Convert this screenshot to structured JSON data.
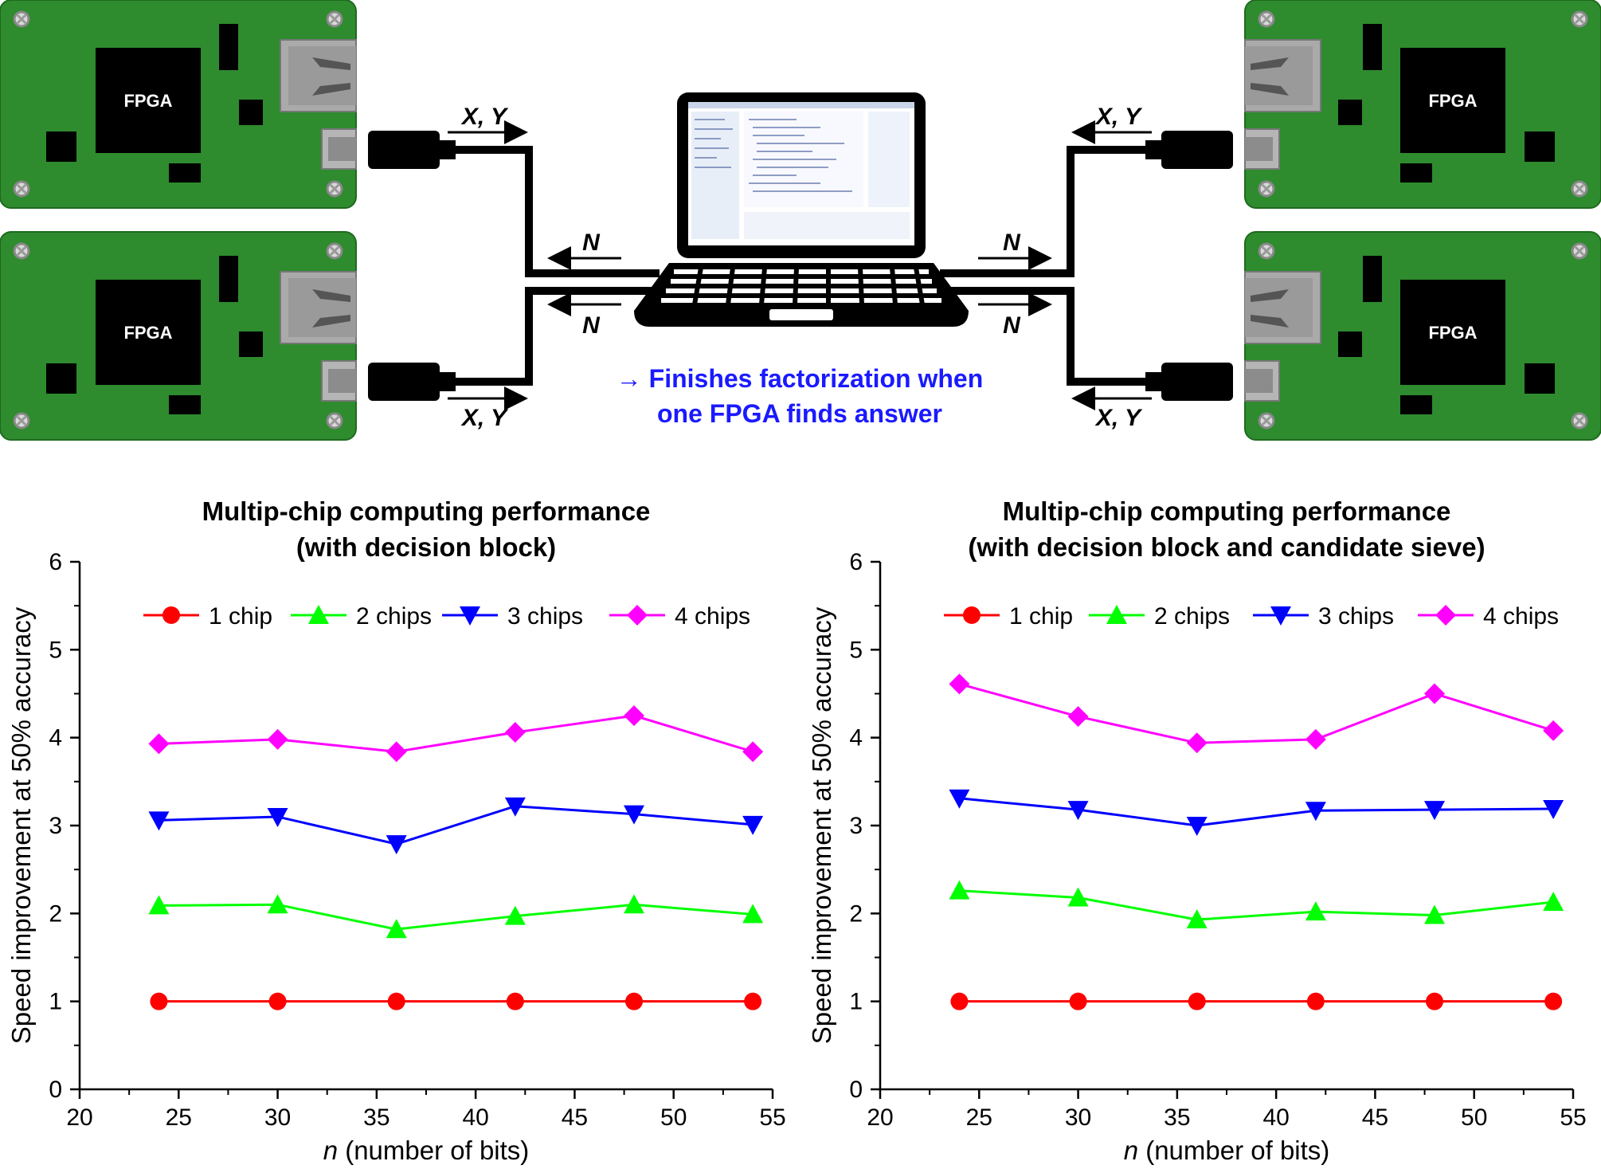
{
  "diagram": {
    "fpga_label": "FPGA",
    "xy_label": "X, Y",
    "n_label": "N",
    "note_line1": "→ Finishes factorization when",
    "note_line2": "one FPGA finds answer",
    "colors": {
      "board": "#2e8b2e",
      "board_edge": "#1e6b1e",
      "note": "#1a1aff"
    }
  },
  "chart_data": [
    {
      "type": "line",
      "title": [
        "Multip-chip computing performance",
        "(with decision block)"
      ],
      "xlabel_var": "n",
      "xlabel_rest": " (number of bits)",
      "ylabel": "Speed improvement at 50% accuracy",
      "xlim": [
        20,
        55
      ],
      "ylim": [
        0,
        6
      ],
      "xticks": [
        20,
        25,
        30,
        35,
        40,
        45,
        50,
        55
      ],
      "yticks": [
        0,
        1,
        2,
        3,
        4,
        5,
        6
      ],
      "legend_position": "top",
      "x": [
        24,
        30,
        36,
        42,
        48,
        54
      ],
      "series": [
        {
          "name": "1 chip",
          "color": "#ff0000",
          "marker": "circle",
          "values": [
            1.0,
            1.0,
            1.0,
            1.0,
            1.0,
            1.0
          ]
        },
        {
          "name": "2 chips",
          "color": "#00ff00",
          "marker": "triangle-up",
          "values": [
            2.09,
            2.1,
            1.82,
            1.97,
            2.1,
            1.99
          ]
        },
        {
          "name": "3 chips",
          "color": "#0000ff",
          "marker": "triangle-down",
          "values": [
            3.06,
            3.1,
            2.79,
            3.22,
            3.13,
            3.01
          ]
        },
        {
          "name": "4 chips",
          "color": "#ff00ff",
          "marker": "diamond",
          "values": [
            3.93,
            3.98,
            3.84,
            4.06,
            4.25,
            3.84
          ]
        }
      ]
    },
    {
      "type": "line",
      "title": [
        "Multip-chip computing performance",
        "(with decision block and candidate sieve)"
      ],
      "xlabel_var": "n",
      "xlabel_rest": " (number of bits)",
      "ylabel": "Speed improvement at 50% accuracy",
      "xlim": [
        20,
        55
      ],
      "ylim": [
        0,
        6
      ],
      "xticks": [
        20,
        25,
        30,
        35,
        40,
        45,
        50,
        55
      ],
      "yticks": [
        0,
        1,
        2,
        3,
        4,
        5,
        6
      ],
      "legend_position": "top",
      "x": [
        24,
        30,
        36,
        42,
        48,
        54
      ],
      "series": [
        {
          "name": "1 chip",
          "color": "#ff0000",
          "marker": "circle",
          "values": [
            1.0,
            1.0,
            1.0,
            1.0,
            1.0,
            1.0
          ]
        },
        {
          "name": "2 chips",
          "color": "#00ff00",
          "marker": "triangle-up",
          "values": [
            2.26,
            2.18,
            1.93,
            2.02,
            1.98,
            2.13
          ]
        },
        {
          "name": "3 chips",
          "color": "#0000ff",
          "marker": "triangle-down",
          "values": [
            3.31,
            3.18,
            3.0,
            3.17,
            3.18,
            3.19
          ]
        },
        {
          "name": "4 chips",
          "color": "#ff00ff",
          "marker": "diamond",
          "values": [
            4.61,
            4.24,
            3.94,
            3.98,
            4.5,
            4.08
          ]
        }
      ]
    }
  ]
}
